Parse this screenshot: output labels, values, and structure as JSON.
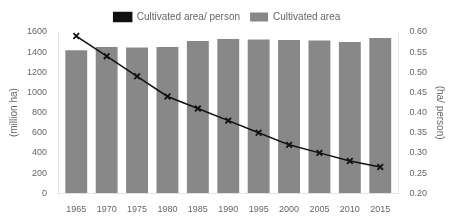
{
  "chart_data": {
    "type": "bar",
    "x": [
      1965,
      1970,
      1975,
      1980,
      1985,
      1990,
      1995,
      2000,
      2005,
      2010,
      2015
    ],
    "xlim": [
      1962,
      2018
    ],
    "xticks": [
      1965,
      1970,
      1975,
      1980,
      1985,
      1990,
      1995,
      2000,
      2005,
      2010,
      2015
    ],
    "ylabel": "(million ha)",
    "y2label": "(ha/ person)",
    "ylim": [
      0,
      1600
    ],
    "yticks": [
      0,
      200,
      400,
      600,
      800,
      1000,
      1200,
      1400,
      1600
    ],
    "y2lim": [
      0.2,
      0.6
    ],
    "y2ticks": [
      {
        "value": 0.2,
        "label": "0.20"
      },
      {
        "value": 0.25,
        "label": "0.25"
      },
      {
        "value": 0.3,
        "label": "0.30"
      },
      {
        "value": 0.35,
        "label": "0.35"
      },
      {
        "value": 0.4,
        "label": "0.40"
      },
      {
        "value": 0.45,
        "label": "0.45"
      },
      {
        "value": 0.5,
        "label": "0.50"
      },
      {
        "value": 0.55,
        "label": "0.55"
      },
      {
        "value": 0.6,
        "label": "0.60"
      }
    ],
    "series": [
      {
        "name": "Cultivated area",
        "type": "bar",
        "color": "#888888",
        "values": [
          1420,
          1450,
          1445,
          1450,
          1510,
          1530,
          1525,
          1520,
          1515,
          1500,
          1540
        ]
      },
      {
        "name": "Cultivated area/ person",
        "type": "line",
        "color": "#111111",
        "marker": "x",
        "axis": "y2",
        "values": [
          0.59,
          0.54,
          0.49,
          0.44,
          0.41,
          0.38,
          0.35,
          0.32,
          0.3,
          0.28,
          0.265
        ]
      }
    ],
    "grid": false,
    "legend": "top"
  }
}
